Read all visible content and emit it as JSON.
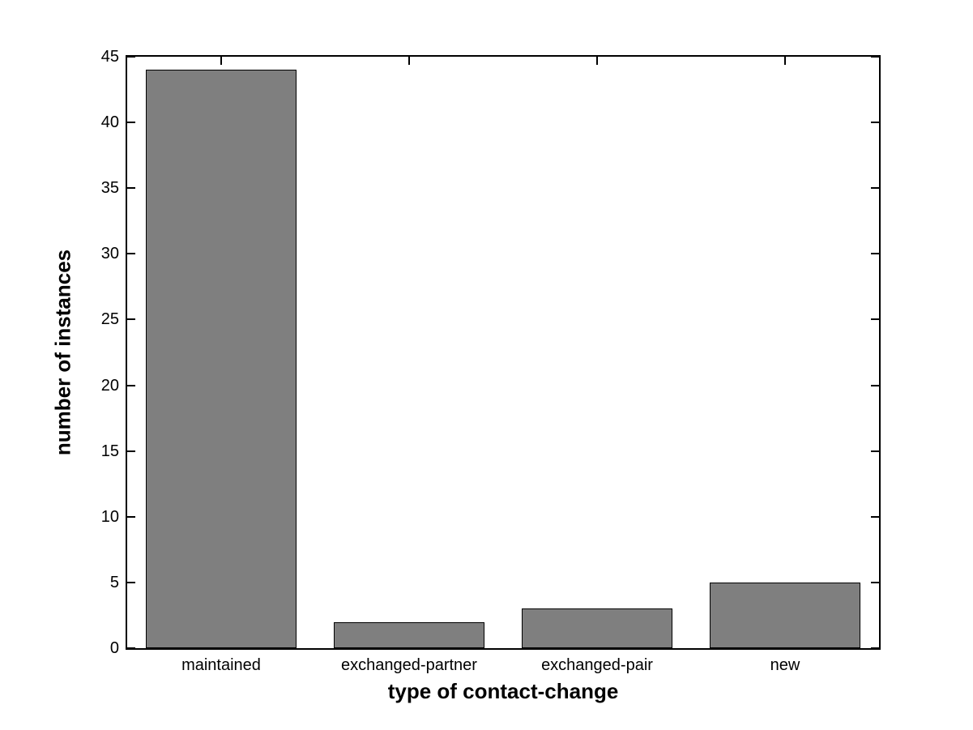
{
  "figure": {
    "background": "#ffffff",
    "axis_color": "#000000"
  },
  "chart_data": {
    "type": "bar",
    "title": "",
    "xlabel": "type of contact-change",
    "ylabel": "number of instances",
    "categories": [
      "maintained",
      "exchanged-partner",
      "exchanged-pair",
      "new"
    ],
    "values": [
      44,
      2,
      3,
      5
    ],
    "ylim": [
      0,
      45
    ],
    "yticks": [
      0,
      5,
      10,
      15,
      20,
      25,
      30,
      35,
      40,
      45
    ],
    "bar_width_fraction": 0.8,
    "grid": false,
    "legend": null,
    "bar_color": "#7f7f7f",
    "bar_edge_color": "#000000"
  }
}
